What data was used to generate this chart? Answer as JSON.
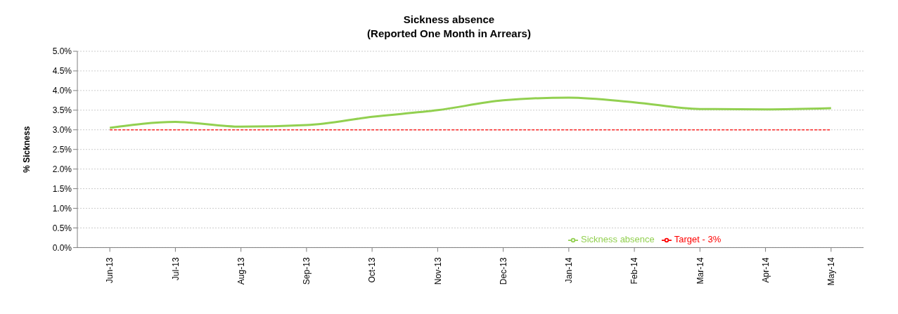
{
  "chart_data": {
    "type": "line",
    "title": "Sickness absence",
    "subtitle": "(Reported One Month in Arrears)",
    "ylabel": "% Sickness",
    "categories": [
      "Jun-13",
      "Jul-13",
      "Aug-13",
      "Sep-13",
      "Oct-13",
      "Nov-13",
      "Dec-13",
      "Jan-14",
      "Feb-14",
      "Mar-14",
      "Apr-14",
      "May-14"
    ],
    "series": [
      {
        "name": "Sickness absence",
        "color": "#92d050",
        "values": [
          3.05,
          3.2,
          3.08,
          3.12,
          3.33,
          3.5,
          3.75,
          3.82,
          3.7,
          3.53,
          3.52,
          3.55
        ]
      },
      {
        "name": "Target - 3%",
        "color": "#ff0000",
        "line_style": "dashed",
        "values": [
          3,
          3,
          3,
          3,
          3,
          3,
          3,
          3,
          3,
          3,
          3,
          3
        ]
      }
    ],
    "ylim": [
      0,
      5
    ],
    "yticks": [
      {
        "value": 0,
        "label": "0.0%"
      },
      {
        "value": 0.5,
        "label": "0.5%"
      },
      {
        "value": 1,
        "label": "1.0%"
      },
      {
        "value": 1.5,
        "label": "1.5%"
      },
      {
        "value": 2,
        "label": "2.0%"
      },
      {
        "value": 2.5,
        "label": "2.5%"
      },
      {
        "value": 3,
        "label": "3.0%"
      },
      {
        "value": 3.5,
        "label": "3.5%"
      },
      {
        "value": 4,
        "label": "4.0%"
      },
      {
        "value": 4.5,
        "label": "4.5%"
      },
      {
        "value": 5,
        "label": "5.0%"
      }
    ],
    "grid": "y",
    "legend": "right",
    "marker": "none"
  }
}
